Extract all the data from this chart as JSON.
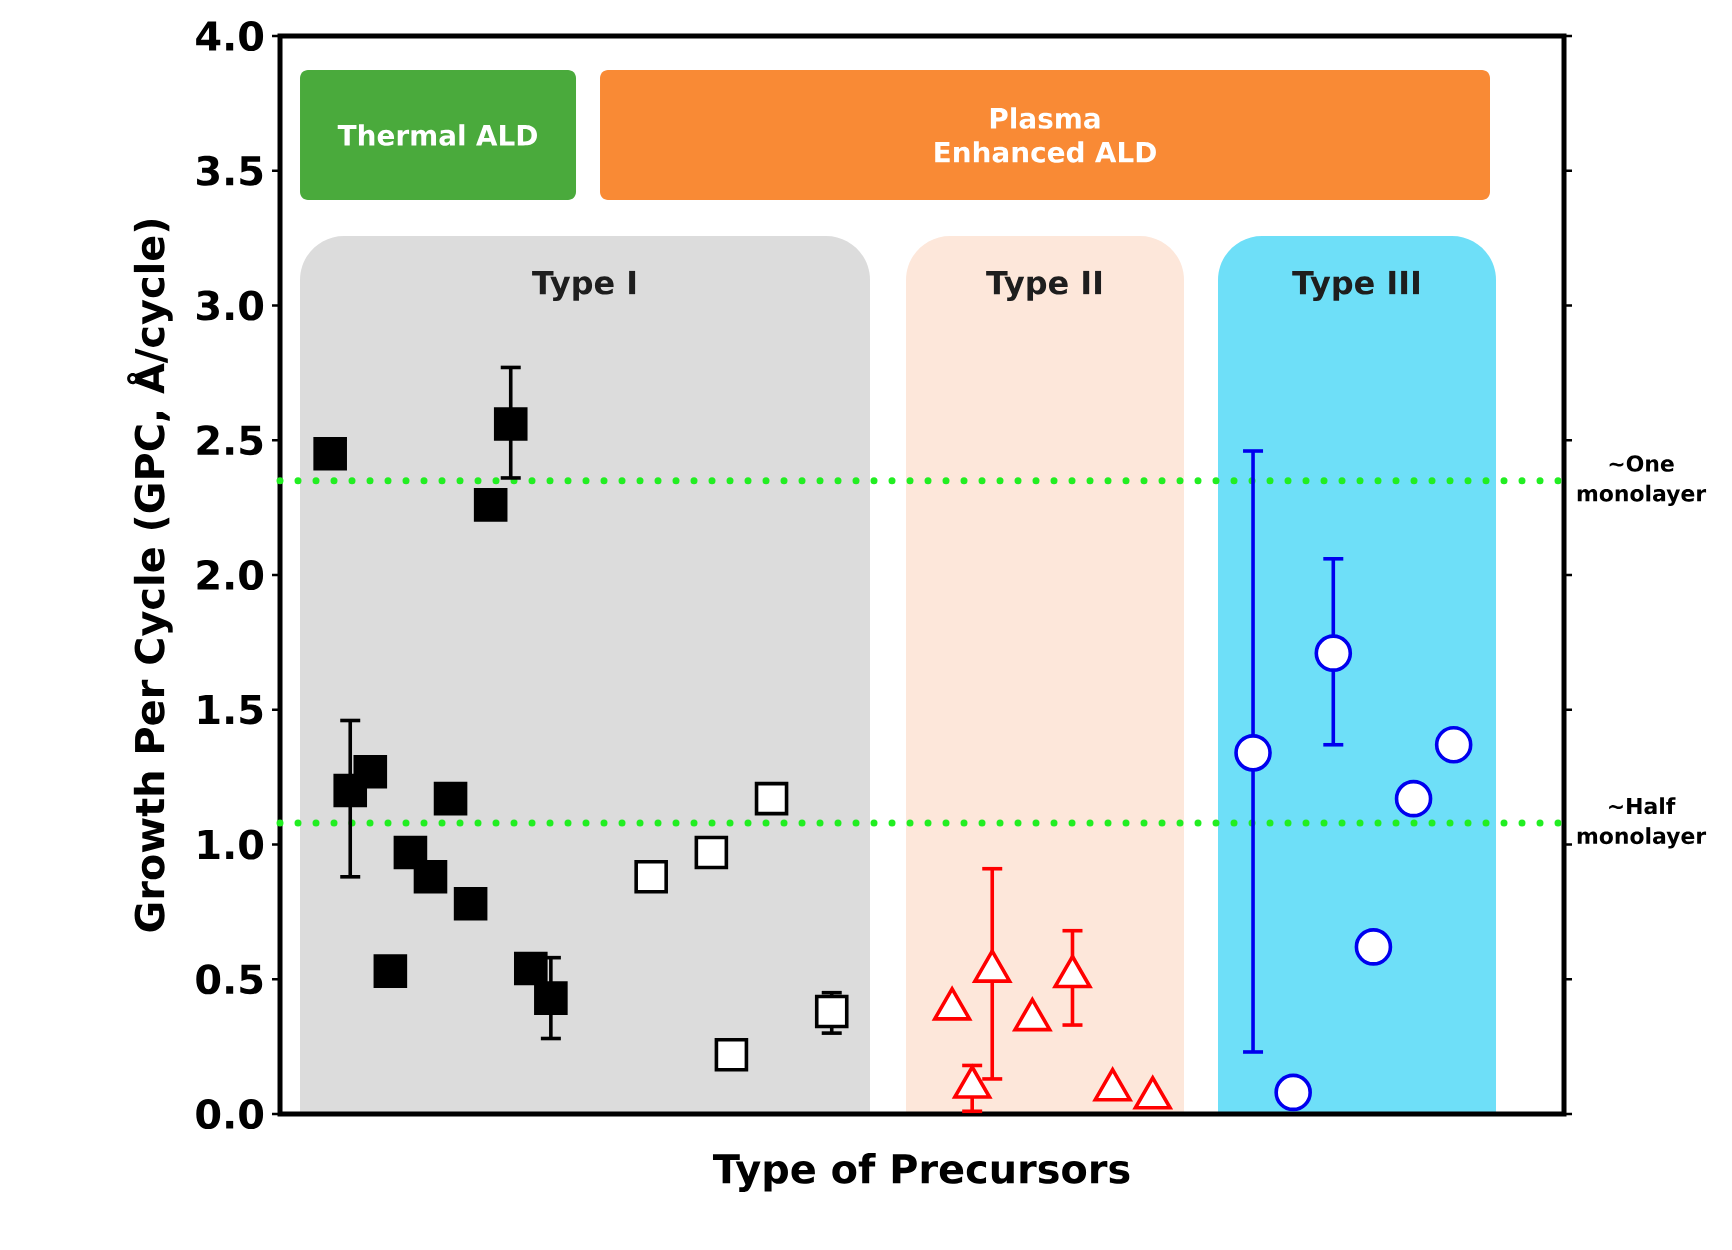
{
  "chart_data": {
    "type": "scatter",
    "xlabel": "Type of Precursors",
    "ylabel": "Growth Per Cycle (GPC, Å/cycle)",
    "annotations": [
      "Thermal ALD",
      "Plasma Enhanced ALD",
      "Type I",
      "Type II",
      "Type III"
    ],
    "ylim": [
      0,
      4
    ],
    "yticks": [
      {
        "value": 0,
        "label": "0.0"
      },
      {
        "value": 0.5,
        "label": "0.5"
      },
      {
        "value": 1,
        "label": "1.0"
      },
      {
        "value": 1.5,
        "label": "1.5"
      },
      {
        "value": 2,
        "label": "2.0"
      },
      {
        "value": 2.5,
        "label": "2.5"
      },
      {
        "value": 3,
        "label": "3.0"
      },
      {
        "value": 3.5,
        "label": "3.5"
      },
      {
        "value": 4,
        "label": "4.0"
      }
    ],
    "tick_labels": "y",
    "categories": [
      null,
      null,
      null,
      null,
      null,
      null,
      null,
      null,
      null,
      null,
      null,
      null,
      null,
      null,
      null,
      null,
      null,
      null,
      null,
      null,
      null,
      null,
      null,
      null,
      null,
      null,
      null,
      null,
      null,
      null,
      null,
      null,
      null,
      null,
      null,
      null,
      null,
      null,
      null,
      null,
      null,
      null,
      null,
      null,
      null,
      null,
      null,
      null,
      null,
      null,
      null,
      null,
      null,
      null,
      null,
      null,
      null,
      null,
      null,
      null,
      null,
      null,
      null,
      null
    ],
    "ref_lines": [
      {
        "axis": "y",
        "value": 2.35,
        "label": "~One monolayer",
        "color": "#22ee22",
        "line_style": "dotted"
      },
      {
        "axis": "y",
        "value": 1.08,
        "label": "~Half monolayer",
        "color": "#22ee22",
        "line_style": "dotted"
      }
    ],
    "series": [
      {
        "color": "#000000",
        "marker": "square",
        "values": [
          null,
          null,
          2.45,
          1.2,
          1.27,
          0.53,
          0.97,
          0.88,
          1.17,
          0.78,
          2.26,
          2.56,
          0.54,
          0.43,
          null,
          null,
          null,
          null,
          null,
          null,
          null,
          null,
          null,
          null,
          null,
          null,
          null,
          null,
          null,
          null,
          null,
          null,
          null,
          null,
          null,
          null,
          null,
          null,
          null,
          null,
          null,
          null,
          null,
          null,
          null,
          null,
          null,
          null,
          null,
          null,
          null,
          null,
          null,
          null,
          null,
          null,
          null,
          null,
          null,
          null,
          null,
          null,
          null,
          null
        ],
        "errors": [
          null,
          null,
          null,
          [
            0.88,
            1.46
          ],
          null,
          null,
          null,
          null,
          null,
          null,
          null,
          [
            2.36,
            2.77
          ],
          null,
          [
            0.28,
            0.58
          ],
          null,
          null,
          null,
          null,
          null,
          null,
          null,
          null,
          null,
          null,
          null,
          null,
          null,
          null,
          null,
          null,
          null,
          null,
          null,
          null,
          null,
          null,
          null,
          null,
          null,
          null,
          null,
          null,
          null,
          null,
          null,
          null,
          null,
          null,
          null,
          null,
          null,
          null,
          null,
          null,
          null,
          null,
          null,
          null,
          null,
          null,
          null,
          null,
          null,
          null
        ]
      },
      {
        "color": "#000000",
        "marker": "square",
        "values": [
          null,
          null,
          null,
          null,
          null,
          null,
          null,
          null,
          null,
          null,
          null,
          null,
          null,
          null,
          null,
          null,
          null,
          null,
          0.88,
          null,
          null,
          0.97,
          0.22,
          null,
          1.17,
          null,
          null,
          0.38,
          null,
          null,
          null,
          null,
          null,
          null,
          null,
          null,
          null,
          null,
          null,
          null,
          null,
          null,
          null,
          null,
          null,
          null,
          null,
          null,
          null,
          null,
          null,
          null,
          null,
          null,
          null,
          null,
          null,
          null,
          null,
          null,
          null,
          null,
          null,
          null
        ],
        "errors": [
          null,
          null,
          null,
          null,
          null,
          null,
          null,
          null,
          null,
          null,
          null,
          null,
          null,
          null,
          null,
          null,
          null,
          null,
          null,
          null,
          null,
          null,
          null,
          null,
          null,
          null,
          null,
          [
            0.3,
            0.45
          ],
          null,
          null,
          null,
          null,
          null,
          null,
          null,
          null,
          null,
          null,
          null,
          null,
          null,
          null,
          null,
          null,
          null,
          null,
          null,
          null,
          null,
          null,
          null,
          null,
          null,
          null,
          null,
          null,
          null,
          null,
          null,
          null,
          null,
          null,
          null,
          null
        ]
      },
      {
        "color": "#ff0000",
        "marker": "triangle",
        "values": [
          null,
          null,
          null,
          null,
          null,
          null,
          null,
          null,
          null,
          null,
          null,
          null,
          null,
          null,
          null,
          null,
          null,
          null,
          null,
          null,
          null,
          null,
          null,
          null,
          null,
          null,
          null,
          null,
          null,
          null,
          null,
          null,
          null,
          0.39,
          0.1,
          0.53,
          null,
          0.35,
          null,
          0.51,
          null,
          0.09,
          null,
          0.06,
          null,
          null,
          null,
          null,
          null,
          null,
          null,
          null,
          null,
          null,
          null,
          null,
          null,
          null,
          null,
          null,
          null,
          null,
          null,
          null
        ],
        "errors": [
          null,
          null,
          null,
          null,
          null,
          null,
          null,
          null,
          null,
          null,
          null,
          null,
          null,
          null,
          null,
          null,
          null,
          null,
          null,
          null,
          null,
          null,
          null,
          null,
          null,
          null,
          null,
          null,
          null,
          null,
          null,
          null,
          null,
          null,
          [
            0.01,
            0.18
          ],
          [
            0.13,
            0.91
          ],
          null,
          null,
          null,
          [
            0.33,
            0.68
          ],
          null,
          null,
          null,
          null,
          null,
          null,
          null,
          null,
          null,
          null,
          null,
          null,
          null,
          null,
          null,
          null,
          null,
          null,
          null,
          null,
          null,
          null,
          null,
          null
        ]
      },
      {
        "color": "#0000ee",
        "marker": "circle",
        "values": [
          null,
          null,
          null,
          null,
          null,
          null,
          null,
          null,
          null,
          null,
          null,
          null,
          null,
          null,
          null,
          null,
          null,
          null,
          null,
          null,
          null,
          null,
          null,
          null,
          null,
          null,
          null,
          null,
          null,
          null,
          null,
          null,
          null,
          null,
          null,
          null,
          null,
          null,
          null,
          null,
          null,
          null,
          null,
          null,
          null,
          null,
          null,
          null,
          1.34,
          null,
          0.08,
          null,
          1.71,
          null,
          0.62,
          null,
          1.17,
          null,
          1.37,
          null,
          null,
          null,
          null,
          null
        ],
        "errors": [
          null,
          null,
          null,
          null,
          null,
          null,
          null,
          null,
          null,
          null,
          null,
          null,
          null,
          null,
          null,
          null,
          null,
          null,
          null,
          null,
          null,
          null,
          null,
          null,
          null,
          null,
          null,
          null,
          null,
          null,
          null,
          null,
          null,
          null,
          null,
          null,
          null,
          null,
          null,
          null,
          null,
          null,
          null,
          null,
          null,
          null,
          null,
          null,
          [
            0.23,
            2.46
          ],
          null,
          null,
          null,
          [
            1.37,
            2.06
          ],
          null,
          null,
          null,
          null,
          null,
          null,
          null,
          null,
          null,
          null,
          null
        ]
      }
    ]
  }
}
